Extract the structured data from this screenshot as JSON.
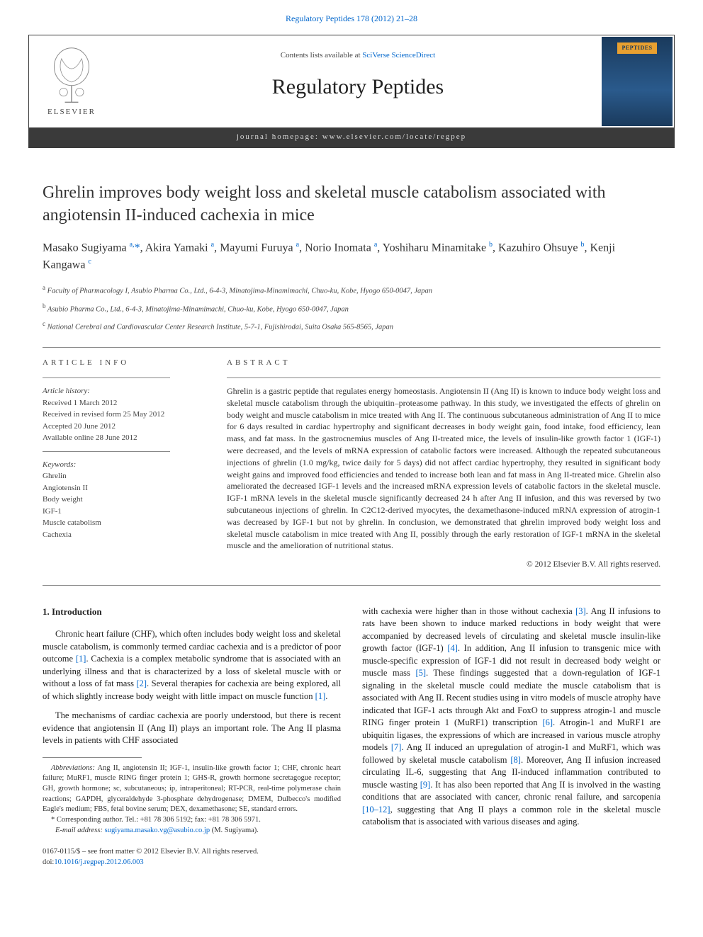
{
  "top_link": {
    "journal": "Regulatory Peptides",
    "citation": "178 (2012) 21–28"
  },
  "banner": {
    "contents_prefix": "Contents lists available at ",
    "contents_link": "SciVerse ScienceDirect",
    "journal_title": "Regulatory Peptides",
    "homepage_label": "journal homepage: www.elsevier.com/locate/regpep",
    "publisher": "ELSEVIER",
    "cover_label": "PEPTIDES"
  },
  "article": {
    "title": "Ghrelin improves body weight loss and skeletal muscle catabolism associated with angiotensin II-induced cachexia in mice",
    "authors_html": "Masako Sugiyama <sup>a,</sup><span class='star'>*</span>, Akira Yamaki <sup>a</sup>, Mayumi Furuya <sup>a</sup>, Norio Inomata <sup>a</sup>, Yoshiharu Minamitake <sup>b</sup>, Kazuhiro Ohsuye <sup>b</sup>, Kenji Kangawa <sup>c</sup>",
    "affiliations": [
      {
        "sup": "a",
        "text": "Faculty of Pharmacology I, Asubio Pharma Co., Ltd., 6-4-3, Minatojima-Minamimachi, Chuo-ku, Kobe, Hyogo 650-0047, Japan"
      },
      {
        "sup": "b",
        "text": "Asubio Pharma Co., Ltd., 6-4-3, Minatojima-Minamimachi, Chuo-ku, Kobe, Hyogo 650-0047, Japan"
      },
      {
        "sup": "c",
        "text": "National Cerebral and Cardiovascular Center Research Institute, 5-7-1, Fujishirodai, Suita Osaka 565-8565, Japan"
      }
    ]
  },
  "info": {
    "label": "article info",
    "history_label": "Article history:",
    "history": [
      "Received 1 March 2012",
      "Received in revised form 25 May 2012",
      "Accepted 20 June 2012",
      "Available online 28 June 2012"
    ],
    "keywords_label": "Keywords:",
    "keywords": [
      "Ghrelin",
      "Angiotensin II",
      "Body weight",
      "IGF-1",
      "Muscle catabolism",
      "Cachexia"
    ]
  },
  "abstract": {
    "label": "abstract",
    "text": "Ghrelin is a gastric peptide that regulates energy homeostasis. Angiotensin II (Ang II) is known to induce body weight loss and skeletal muscle catabolism through the ubiquitin–proteasome pathway. In this study, we investigated the effects of ghrelin on body weight and muscle catabolism in mice treated with Ang II. The continuous subcutaneous administration of Ang II to mice for 6 days resulted in cardiac hypertrophy and significant decreases in body weight gain, food intake, food efficiency, lean mass, and fat mass. In the gastrocnemius muscles of Ang II-treated mice, the levels of insulin-like growth factor 1 (IGF-1) were decreased, and the levels of mRNA expression of catabolic factors were increased. Although the repeated subcutaneous injections of ghrelin (1.0 mg/kg, twice daily for 5 days) did not affect cardiac hypertrophy, they resulted in significant body weight gains and improved food efficiencies and tended to increase both lean and fat mass in Ang II-treated mice. Ghrelin also ameliorated the decreased IGF-1 levels and the increased mRNA expression levels of catabolic factors in the skeletal muscle. IGF-1 mRNA levels in the skeletal muscle significantly decreased 24 h after Ang II infusion, and this was reversed by two subcutaneous injections of ghrelin. In C2C12-derived myocytes, the dexamethasone-induced mRNA expression of atrogin-1 was decreased by IGF-1 but not by ghrelin. In conclusion, we demonstrated that ghrelin improved body weight loss and skeletal muscle catabolism in mice treated with Ang II, possibly through the early restoration of IGF-1 mRNA in the skeletal muscle and the amelioration of nutritional status.",
    "copyright": "© 2012 Elsevier B.V. All rights reserved."
  },
  "body": {
    "heading": "1. Introduction",
    "left_paras": [
      "Chronic heart failure (CHF), which often includes body weight loss and skeletal muscle catabolism, is commonly termed cardiac cachexia and is a predictor of poor outcome <a href='#'>[1]</a>. Cachexia is a complex metabolic syndrome that is associated with an underlying illness and that is characterized by a loss of skeletal muscle with or without a loss of fat mass <a href='#'>[2]</a>. Several therapies for cachexia are being explored, all of which slightly increase body weight with little impact on muscle function <a href='#'>[1]</a>.",
      "The mechanisms of cardiac cachexia are poorly understood, but there is recent evidence that angiotensin II (Ang II) plays an important role. The Ang II plasma levels in patients with CHF associated"
    ],
    "right_paras": [
      "with cachexia were higher than in those without cachexia <a href='#'>[3]</a>. Ang II infusions to rats have been shown to induce marked reductions in body weight that were accompanied by decreased levels of circulating and skeletal muscle insulin-like growth factor (IGF-1) <a href='#'>[4]</a>. In addition, Ang II infusion to transgenic mice with muscle-specific expression of IGF-1 did not result in decreased body weight or muscle mass <a href='#'>[5]</a>. These findings suggested that a down-regulation of IGF-1 signaling in the skeletal muscle could mediate the muscle catabolism that is associated with Ang II. Recent studies using in vitro models of muscle atrophy have indicated that IGF-1 acts through Akt and FoxO to suppress atrogin-1 and muscle RING finger protein 1 (MuRF1) transcription <a href='#'>[6]</a>. Atrogin-1 and MuRF1 are ubiquitin ligases, the expressions of which are increased in various muscle atrophy models <a href='#'>[7]</a>. Ang II induced an upregulation of atrogin-1 and MuRF1, which was followed by skeletal muscle catabolism <a href='#'>[8]</a>. Moreover, Ang II infusion increased circulating IL-6, suggesting that Ang II-induced inflammation contributed to muscle wasting <a href='#'>[9]</a>. It has also been reported that Ang II is involved in the wasting conditions that are associated with cancer, chronic renal failure, and sarcopenia <a href='#'>[10–12]</a>, suggesting that Ang II plays a common role in the skeletal muscle catabolism that is associated with various diseases and aging."
    ]
  },
  "footnotes": {
    "abbrev_label": "Abbreviations:",
    "abbrev_text": "Ang II, angiotensin II; IGF-1, insulin-like growth factor 1; CHF, chronic heart failure; MuRF1, muscle RING finger protein 1; GHS-R, growth hormone secretagogue receptor; GH, growth hormone; sc, subcutaneous; ip, intraperitoneal; RT-PCR, real-time polymerase chain reactions; GAPDH, glyceraldehyde 3-phosphate dehydrogenase; DMEM, Dulbecco's modified Eagle's medium; FBS, fetal bovine serum; DEX, dexamethasone; SE, standard errors.",
    "corresponding": "* Corresponding author. Tel.: +81 78 306 5192; fax: +81 78 306 5971.",
    "email_label": "E-mail address:",
    "email": "sugiyama.masako.vg@asubio.co.jp",
    "email_suffix": "(M. Sugiyama)."
  },
  "bottom": {
    "issn": "0167-0115/$ – see front matter © 2012 Elsevier B.V. All rights reserved.",
    "doi_prefix": "doi:",
    "doi": "10.1016/j.regpep.2012.06.003"
  },
  "colors": {
    "link": "#0066cc",
    "text": "#222222",
    "banner_bar": "#3a3a3a",
    "cover_bg_top": "#1a3a5c",
    "cover_accent": "#e8a030"
  }
}
